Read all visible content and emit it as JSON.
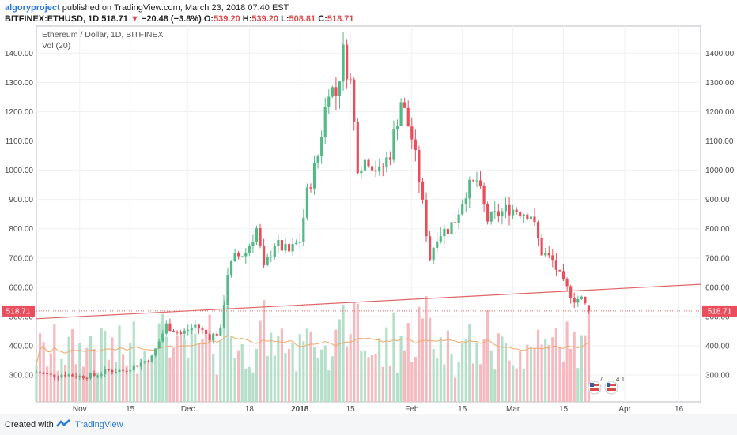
{
  "header": {
    "author": "algoryproject",
    "published": "published on TradingView.com, March 23, 2018 07:40 EST",
    "symbol": "BITFINEX:ETHUSD, 1D",
    "last": "518.71",
    "change_arrow": "▼",
    "change": "−20.48 (−3.8%)",
    "o_label": "O:",
    "o": "539.20",
    "h_label": "H:",
    "h": "539.20",
    "l_label": "L:",
    "l": "508.81",
    "c_label": "C:",
    "c": "518.71"
  },
  "chart_title": "Ethereum / Dollar, 1D, BITFINEX",
  "vol_label": "Vol (20)",
  "last_price_tag": "518.71",
  "flags": {
    "us_flag_1_count": "7",
    "us_flag_2_count": "4 1"
  },
  "footer": {
    "created_with": "Created with",
    "brand": "TradingView"
  },
  "colors": {
    "up": "#53b987",
    "down": "#eb4d5c",
    "vol_up": "#b5dfc9",
    "vol_down": "#f5b9bf",
    "trendline": "#e06666",
    "vol_ma": "#f0a96a",
    "accent": "#2c7ad6"
  },
  "chart_data": {
    "type": "candlestick",
    "title": "Ethereum / Dollar, 1D, BITFINEX",
    "ylim": [
      220,
      1470
    ],
    "y_ticks": [
      300,
      400,
      500,
      600,
      700,
      800,
      900,
      1000,
      1100,
      1200,
      1300,
      1400
    ],
    "y_tick_labels": [
      "300.00",
      "400.00",
      "500.00",
      "600.00",
      "700.00",
      "800.00",
      "900.00",
      "1000.00",
      "1100.00",
      "1200.00",
      "1300.00",
      "1400.00"
    ],
    "x_range": [
      "2017-10-20",
      "2018-04-22"
    ],
    "x_ticks": [
      {
        "date": "2017-11-01",
        "label": "Nov"
      },
      {
        "date": "2017-11-15",
        "label": "15"
      },
      {
        "date": "2017-12-01",
        "label": "Dec"
      },
      {
        "date": "2017-12-18",
        "label": "18"
      },
      {
        "date": "2018-01-01",
        "label": "2018"
      },
      {
        "date": "2018-01-15",
        "label": "15"
      },
      {
        "date": "2018-02-01",
        "label": "Feb"
      },
      {
        "date": "2018-02-15",
        "label": "15"
      },
      {
        "date": "2018-03-01",
        "label": "Mar"
      },
      {
        "date": "2018-03-15",
        "label": "15"
      },
      {
        "date": "2018-04-01",
        "label": "Apr"
      },
      {
        "date": "2018-04-16",
        "label": "16"
      }
    ],
    "close_series": [
      {
        "date": "2017-10-20",
        "close": 310
      },
      {
        "date": "2017-10-24",
        "close": 298
      },
      {
        "date": "2017-10-28",
        "close": 302
      },
      {
        "date": "2017-11-01",
        "close": 295
      },
      {
        "date": "2017-11-05",
        "close": 298
      },
      {
        "date": "2017-11-09",
        "close": 315
      },
      {
        "date": "2017-11-13",
        "close": 315
      },
      {
        "date": "2017-11-17",
        "close": 335
      },
      {
        "date": "2017-11-21",
        "close": 360
      },
      {
        "date": "2017-11-25",
        "close": 470
      },
      {
        "date": "2017-11-29",
        "close": 440
      },
      {
        "date": "2017-12-03",
        "close": 470
      },
      {
        "date": "2017-12-07",
        "close": 430
      },
      {
        "date": "2017-12-10",
        "close": 450
      },
      {
        "date": "2017-12-12",
        "close": 650
      },
      {
        "date": "2017-12-14",
        "close": 700
      },
      {
        "date": "2017-12-17",
        "close": 720
      },
      {
        "date": "2017-12-20",
        "close": 800
      },
      {
        "date": "2017-12-22",
        "close": 660
      },
      {
        "date": "2017-12-25",
        "close": 750
      },
      {
        "date": "2017-12-29",
        "close": 720
      },
      {
        "date": "2018-01-01",
        "close": 760
      },
      {
        "date": "2018-01-03",
        "close": 920
      },
      {
        "date": "2018-01-06",
        "close": 1050
      },
      {
        "date": "2018-01-09",
        "close": 1290
      },
      {
        "date": "2018-01-11",
        "close": 1260
      },
      {
        "date": "2018-01-13",
        "close": 1400
      },
      {
        "date": "2018-01-15",
        "close": 1300
      },
      {
        "date": "2018-01-17",
        "close": 1020
      },
      {
        "date": "2018-01-20",
        "close": 1040
      },
      {
        "date": "2018-01-23",
        "close": 990
      },
      {
        "date": "2018-01-26",
        "close": 1060
      },
      {
        "date": "2018-01-29",
        "close": 1240
      },
      {
        "date": "2018-02-01",
        "close": 1110
      },
      {
        "date": "2018-02-03",
        "close": 970
      },
      {
        "date": "2018-02-05",
        "close": 790
      },
      {
        "date": "2018-02-06",
        "close": 700
      },
      {
        "date": "2018-02-08",
        "close": 780
      },
      {
        "date": "2018-02-11",
        "close": 800
      },
      {
        "date": "2018-02-13",
        "close": 830
      },
      {
        "date": "2018-02-16",
        "close": 930
      },
      {
        "date": "2018-02-19",
        "close": 965
      },
      {
        "date": "2018-02-22",
        "close": 830
      },
      {
        "date": "2018-02-25",
        "close": 850
      },
      {
        "date": "2018-02-28",
        "close": 870
      },
      {
        "date": "2018-03-03",
        "close": 860
      },
      {
        "date": "2018-03-06",
        "close": 850
      },
      {
        "date": "2018-03-09",
        "close": 720
      },
      {
        "date": "2018-03-12",
        "close": 690
      },
      {
        "date": "2018-03-15",
        "close": 610
      },
      {
        "date": "2018-03-18",
        "close": 560
      },
      {
        "date": "2018-03-20",
        "close": 560
      },
      {
        "date": "2018-03-22",
        "close": 518.71
      }
    ],
    "trendline": {
      "start": {
        "date": "2017-10-20",
        "price": 492
      },
      "end": {
        "date": "2018-04-22",
        "price": 610
      }
    },
    "last_price": 518.71,
    "volume_indicator": "Vol (20)"
  }
}
